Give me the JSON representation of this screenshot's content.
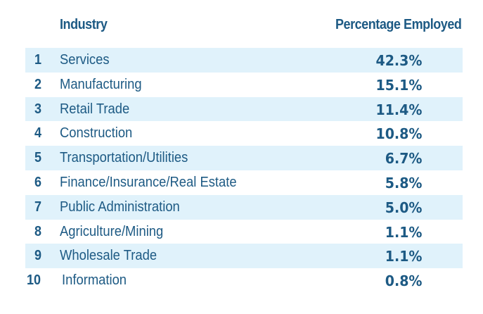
{
  "header": {
    "industry": "Industry",
    "percentage": "Percentage Employed"
  },
  "rows": [
    {
      "rank": "1",
      "industry": "Services",
      "percentage": "42.3%"
    },
    {
      "rank": "2",
      "industry": "Manufacturing",
      "percentage": "15.1%"
    },
    {
      "rank": "3",
      "industry": "Retail Trade",
      "percentage": "11.4%"
    },
    {
      "rank": "4",
      "industry": "Construction",
      "percentage": "10.8%"
    },
    {
      "rank": "5",
      "industry": "Transportation/Utilities",
      "percentage": "6.7%"
    },
    {
      "rank": "6",
      "industry": "Finance/Insurance/Real Estate",
      "percentage": "5.8%"
    },
    {
      "rank": "7",
      "industry": "Public Administration",
      "percentage": "5.0%"
    },
    {
      "rank": "8",
      "industry": "Agriculture/Mining",
      "percentage": "1.1%"
    },
    {
      "rank": "9",
      "industry": "Wholesale Trade",
      "percentage": "1.1%"
    },
    {
      "rank": "10",
      "industry": "Information",
      "percentage": "0.8%"
    }
  ],
  "colors": {
    "text": "#1d5a84",
    "band": "#e0f2fb",
    "background": "#ffffff"
  }
}
